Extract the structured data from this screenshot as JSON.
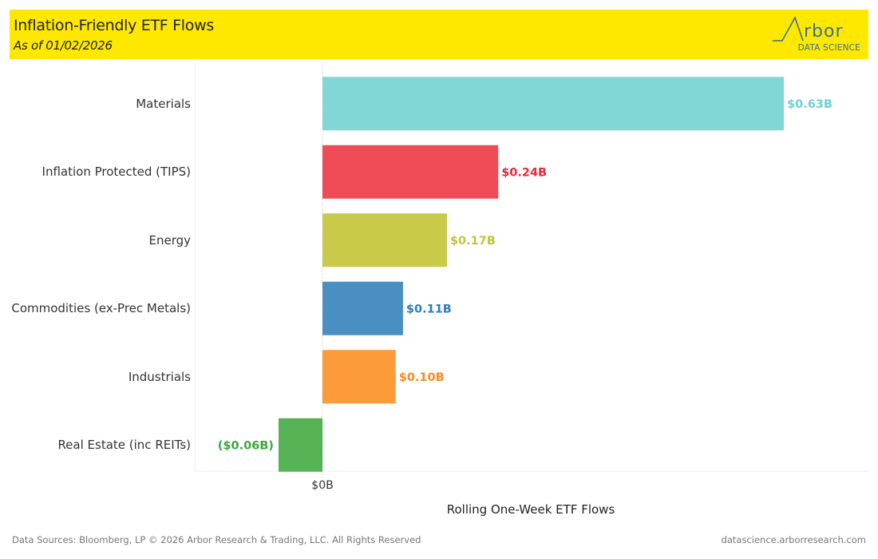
{
  "header": {
    "title": "Inflation-Friendly ETF Flows",
    "subtitle": "As of 01/02/2026",
    "logo_main": "Arbor",
    "logo_sub": "DATA SCIENCE"
  },
  "chart_data": {
    "type": "bar",
    "orientation": "horizontal",
    "title": "Inflation-Friendly ETF Flows",
    "xlabel": "Rolling One-Week ETF Flows",
    "ylabel": "",
    "x_ticks": [
      "$0B"
    ],
    "xlim": [
      -0.065,
      0.745
    ],
    "units": "USD billions",
    "grid": false,
    "categories": [
      "Materials",
      "Inflation Protected (TIPS)",
      "Energy",
      "Commodities (ex-Prec Metals)",
      "Industrials",
      "Real Estate (inc REITs)"
    ],
    "values": [
      0.63,
      0.24,
      0.17,
      0.11,
      0.1,
      -0.06
    ],
    "data_labels": [
      "$0.63B",
      "$0.24B",
      "$0.17B",
      "$0.11B",
      "$0.10B",
      "($0.06B)"
    ],
    "colors": [
      "#82d7d6",
      "#ef4b57",
      "#c9c94a",
      "#4a8fc2",
      "#fd9a3a",
      "#55b355"
    ],
    "label_colors": [
      "#6fcfcf",
      "#e8283b",
      "#c2c23a",
      "#2f7cbc",
      "#f98a1f",
      "#3da53d"
    ]
  },
  "footer": {
    "left": "Data Sources: Bloomberg, LP © 2026 Arbor Research & Trading, LLC. All Rights Reserved",
    "right": "datascience.arborresearch.com"
  }
}
